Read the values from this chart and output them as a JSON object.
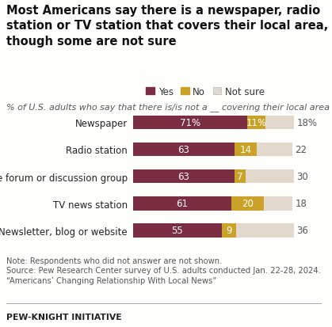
{
  "title": "Most Americans say there is a newspaper, radio\nstation or TV station that covers their local area,\nthough some are not sure",
  "subtitle": "% of U.S. adults who say that there is/is not a __ covering their local area",
  "categories": [
    "Newspaper",
    "Radio station",
    "Online forum or discussion group",
    "TV news station",
    "Newsletter, blog or website"
  ],
  "yes_values": [
    71,
    63,
    63,
    61,
    55
  ],
  "no_values": [
    11,
    14,
    7,
    20,
    9
  ],
  "not_sure_values": [
    18,
    22,
    30,
    18,
    36
  ],
  "yes_labels": [
    "71%",
    "63",
    "63",
    "61",
    "55"
  ],
  "no_labels": [
    "11%",
    "14",
    "7",
    "20",
    "9"
  ],
  "not_sure_labels": [
    "18%",
    "22",
    "30",
    "18",
    "36"
  ],
  "yes_color": "#7B2D42",
  "no_color": "#C9A227",
  "not_sure_color": "#E2D9CC",
  "legend_labels": [
    "Yes",
    "No",
    "Not sure"
  ],
  "note_line1": "Note: Respondents who did not answer are not shown.",
  "note_line2": "Source: Pew Research Center survey of U.S. adults conducted Jan. 22-28, 2024.",
  "note_line3": "“Americans’ Changing Relationship With Local News”",
  "footer": "PEW-KNIGHT INITIATIVE",
  "background_color": "#FEFEFC",
  "title_fontsize": 10.5,
  "subtitle_fontsize": 8.0,
  "bar_label_fontsize": 8.5,
  "legend_fontsize": 8.5,
  "category_fontsize": 8.5,
  "note_fontsize": 7.2,
  "footer_fontsize": 7.8,
  "bar_height": 0.52
}
